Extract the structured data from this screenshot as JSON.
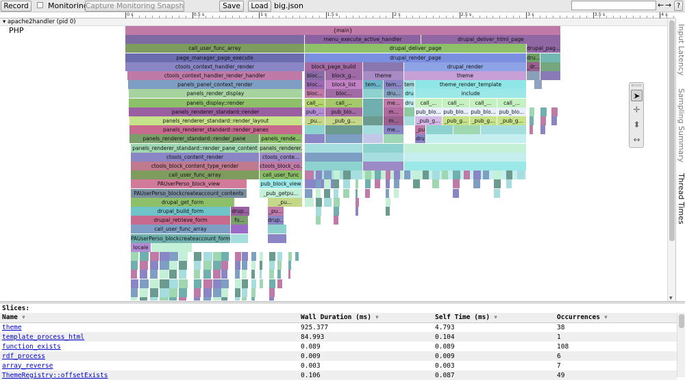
{
  "toolbar": {
    "record_label": "Record",
    "monitoring_label": "Monitoring",
    "monitoring_checked": false,
    "capture_label": "Capture Monitoring Snapshot",
    "save_label": "Save",
    "load_label": "Load",
    "filename": "big.json",
    "search_value": "",
    "prev_label": "←",
    "next_label": "→",
    "help_label": "?"
  },
  "ruler": {
    "ticks": [
      "0 s",
      "0.5 s",
      "1 s",
      "1.5 s",
      "2 s",
      "2.5 s",
      "3 s",
      "3.5 s",
      "4 s"
    ]
  },
  "track": {
    "process_label": "apache2handler (pid 0)",
    "thread_label": "PHP"
  },
  "side_tabs": [
    "Input Latency",
    "Sampling Summary",
    "Thread Times"
  ],
  "tools": [
    {
      "icon": "cursor-icon",
      "glyph": "➤"
    },
    {
      "icon": "pan-icon",
      "glyph": "✛"
    },
    {
      "icon": "zoom-icon",
      "glyph": "⬍"
    },
    {
      "icon": "timing-icon",
      "glyph": "↔"
    }
  ],
  "flame": {
    "rows": [
      [
        [
          "{main}",
          0,
          636,
          "#c07aa8"
        ]
      ],
      [
        [
          "",
          0,
          262,
          "#7d6aa2"
        ],
        [
          "menu_execute_active_handler",
          262,
          170,
          "#8c62a2"
        ],
        [
          "drupal_deliver_html_page",
          432,
          204,
          "#9067a3"
        ]
      ],
      [
        [
          "call_user_func_array",
          0,
          262,
          "#7f9c5f"
        ],
        [
          "drupal_deliver_page",
          262,
          324,
          "#8ec06a"
        ],
        [
          "drupal_pag...",
          586,
          50,
          "#9267a6"
        ]
      ],
      [
        [
          "page_manager_page_execute",
          0,
          262,
          "#6b6bb0"
        ],
        [
          "drupal_render_page",
          262,
          324,
          "#7a8fe0"
        ],
        [
          "dru...",
          586,
          20,
          "#6e9d68"
        ],
        [
          "",
          606,
          30,
          "#72b7b2"
        ]
      ],
      [
        [
          "ctools_context_handler_render",
          0,
          262,
          "#8a86c6"
        ],
        [
          "block_page_build",
          262,
          85,
          "#a36aa5"
        ],
        [
          "",
          347,
          60,
          "#8a77b0"
        ],
        [
          "drupal_render",
          407,
          179,
          "#8ea3e6"
        ],
        [
          "_dr...",
          586,
          20,
          "#9a5f8f"
        ],
        [
          "",
          606,
          30,
          "#76a880"
        ]
      ],
      [
        [
          "ctools_context_handler_render_handler",
          3,
          256,
          "#c07aa8"
        ],
        [
          "bloc...",
          262,
          30,
          "#8a6aa5"
        ],
        [
          "block_g...",
          292,
          55,
          "#a06aa7"
        ],
        [
          "theme",
          347,
          60,
          "#a98ac4"
        ],
        [
          "theme",
          407,
          179,
          "#c6a0d6"
        ],
        [
          "",
          586,
          20,
          "#8aa0b8"
        ],
        [
          "",
          606,
          30,
          "#8a7bb8"
        ]
      ],
      [
        [
          "panels_panel_context_render",
          4,
          255,
          "#7e9fc3"
        ],
        [
          "bloc...",
          262,
          30,
          "#9c6ab1"
        ],
        [
          "block_list",
          292,
          55,
          "#c382c5"
        ],
        [
          "tem...",
          347,
          30,
          "#6bb4c9"
        ],
        [
          "tem...",
          377,
          30,
          "#8a86c6"
        ],
        [
          "tem",
          407,
          16,
          "#a6ddde"
        ],
        [
          "theme_render_template",
          423,
          163,
          "#8fe6e6"
        ],
        [
          "",
          597,
          12,
          "#8fa3c0"
        ]
      ],
      [
        [
          "panels_render_display",
          5,
          254,
          "#a6d3a0"
        ],
        [
          "bloc...",
          262,
          30,
          "#c07aa8"
        ],
        [
          "bloc...",
          292,
          55,
          "#a06aa5"
        ],
        [
          "",
          347,
          30,
          "#8ed2cf"
        ],
        [
          "dru...",
          377,
          30,
          "#85a0bf"
        ],
        [
          "dru",
          407,
          16,
          "#9be8e8"
        ],
        [
          "include",
          423,
          163,
          "#9be8e8"
        ]
      ],
      [
        [
          "panels_display::render",
          5,
          254,
          "#8ec06a"
        ],
        [
          "call_...",
          262,
          30,
          "#b3d36c"
        ],
        [
          "call_...",
          292,
          55,
          "#a5c86a"
        ],
        [
          "",
          347,
          30,
          "#6fb0ae"
        ],
        [
          "me...",
          377,
          30,
          "#c07aa8"
        ],
        [
          "dru",
          407,
          16,
          "#c4efee"
        ],
        [
          "call_...",
          423,
          40,
          "#c5f0c0"
        ],
        [
          "call_...",
          463,
          40,
          "#c5f0c0"
        ],
        [
          "call_...",
          503,
          40,
          "#c5f0c0"
        ],
        [
          "call_...",
          543,
          43,
          "#c5f0c0"
        ]
      ],
      [
        [
          "panels_renderer_standard::render",
          5,
          254,
          "#9a5fa0"
        ],
        [
          "pub_...",
          262,
          30,
          "#b48cd6"
        ],
        [
          "pub_blo...",
          292,
          55,
          "#a46aa5"
        ],
        [
          "",
          347,
          30,
          "#6fb0ae"
        ],
        [
          "m...",
          377,
          30,
          "#b06a9d"
        ],
        [
          "",
          407,
          16,
          "#8fc99f"
        ],
        [
          "pub_blo...",
          423,
          40,
          "#e8f0ff"
        ],
        [
          "pub_blo...",
          463,
          40,
          "#e8f0ff"
        ],
        [
          "pub_blo...",
          503,
          40,
          "#e8f0ff"
        ],
        [
          "pub_blo...",
          543,
          43,
          "#e8f0ff"
        ]
      ],
      [
        [
          "panels_renderer_standard::render_layout",
          6,
          253,
          "#c6e38a"
        ],
        [
          "_pu...",
          262,
          30,
          "#c5d88a"
        ],
        [
          "_pub_g...",
          292,
          55,
          "#c5d88a"
        ],
        [
          "",
          347,
          30,
          "#6b9a8f"
        ],
        [
          "m...",
          377,
          30,
          "#9a5f8f"
        ],
        [
          "",
          407,
          16,
          "#a6ddde"
        ],
        [
          "_pub_g...",
          423,
          40,
          "#d4b8e6"
        ],
        [
          "_pub_g...",
          463,
          40,
          "#c6e38a"
        ],
        [
          "_pub_g...",
          503,
          40,
          "#c6e38a"
        ],
        [
          "_pub_g...",
          543,
          43,
          "#c6e38a"
        ]
      ],
      [
        [
          "panels_renderer_standard::render_panes",
          6,
          253,
          "#c86a8e"
        ],
        [
          "",
          262,
          30,
          "#8ed2cf"
        ],
        [
          "",
          292,
          55,
          "#6b9a8f"
        ],
        [
          "",
          347,
          30,
          "#a6ddde"
        ],
        [
          "me...",
          377,
          30,
          "#8a86c6"
        ],
        [
          "_pu",
          423,
          16,
          "#c07aa8"
        ],
        [
          "",
          439,
          40,
          "#8ed2cf"
        ],
        [
          "",
          479,
          40,
          "#9ed7b0"
        ],
        [
          "",
          519,
          67,
          "#a6ddde"
        ]
      ],
      [
        [
          "panels_renderer_standard::render_pane",
          6,
          190,
          "#7a9f6b"
        ],
        [
          "panels_rende...",
          196,
          63,
          "#89ba66"
        ],
        [
          "",
          262,
          30,
          "#8a86c6"
        ],
        [
          "",
          292,
          55,
          "#7e9fc3"
        ],
        [
          "",
          347,
          30,
          "#c3c6e6"
        ],
        [
          "",
          377,
          30,
          "#9fd7b6"
        ],
        [
          "dru",
          423,
          16,
          "#8a86c6"
        ],
        [
          "",
          439,
          147,
          "#c4efee"
        ]
      ],
      [
        [
          "panels_renderer_standard::render_pane_content",
          8,
          188,
          "#9ed7b0"
        ],
        [
          "panels_renderer...",
          196,
          63,
          "#a6d3a0"
        ],
        [
          "",
          262,
          85,
          "#a6ddde"
        ],
        [
          "",
          347,
          60,
          "#8ed2cf"
        ],
        [
          "",
          407,
          179,
          "#c5f0d8"
        ]
      ],
      [
        [
          "ctools_content_render",
          8,
          188,
          "#8a86c6"
        ],
        [
          "ctools_conte...",
          196,
          63,
          "#9b8ac6"
        ],
        [
          "",
          262,
          85,
          "#7e9fc3"
        ],
        [
          "",
          347,
          60,
          "#a6ddde"
        ],
        [
          "",
          407,
          179,
          "#c4efee"
        ]
      ],
      [
        [
          "ctools_block_content_type_render",
          8,
          188,
          "#c07a8e"
        ],
        [
          "ctools_block_co...",
          196,
          63,
          "#c07aa8"
        ],
        [
          "",
          262,
          85,
          "#8ed2cf"
        ],
        [
          "",
          347,
          60,
          "#9b8ac6"
        ],
        [
          "",
          407,
          179,
          "#9be8e8"
        ]
      ],
      [
        [
          "call_user_func_array",
          8,
          188,
          "#7f9c5f"
        ],
        [
          "call_user_func",
          196,
          63,
          "#89ba66"
        ],
        [
          "",
          262,
          85,
          "#a6ddde"
        ],
        [
          "",
          347,
          60,
          "#c5f0d8"
        ],
        [
          "",
          407,
          179,
          "#c4efee"
        ]
      ],
      [
        [
          "PAUserPerso_block_view",
          8,
          170,
          "#d17a9a"
        ],
        [
          "pub_block_view",
          196,
          63,
          "#9be8e8"
        ],
        [
          "",
          262,
          50,
          "#8a86c6"
        ]
      ],
      [
        [
          "PAUserPerso_blockcreateaccount_contents",
          8,
          170,
          "#7a8fa0"
        ],
        [
          "_pub_getpu...",
          196,
          63,
          "#c5f0d8"
        ]
      ],
      [
        [
          "drupal_get_form",
          8,
          152,
          "#8ec06a"
        ],
        [
          "_pu...",
          208,
          51,
          "#c5d88a"
        ]
      ],
      [
        [
          "drupal_build_form",
          8,
          146,
          "#6ec4c9"
        ],
        [
          "drup...",
          154,
          28,
          "#9a5fa0"
        ],
        [
          "_pu...",
          208,
          24,
          "#c07aa8"
        ]
      ],
      [
        [
          "drupal_retrieve_form",
          8,
          146,
          "#c86a8e"
        ],
        [
          "fo...",
          154,
          26,
          "#7a9f6b"
        ],
        [
          "drup...",
          208,
          24,
          "#8a86c6"
        ]
      ],
      [
        [
          "call_user_func_array",
          8,
          146,
          "#7e9fc3"
        ],
        [
          "",
          154,
          26,
          "#9b6ac6"
        ],
        [
          "",
          208,
          28,
          "#8ed2cf"
        ]
      ],
      [
        [
          "PAUserPerso_blockcreateaccount_form",
          8,
          146,
          "#6fb0ae"
        ],
        [
          "",
          154,
          26,
          "#a6ddde"
        ],
        [
          "",
          208,
          28,
          "#8a86c6"
        ]
      ],
      [
        [
          "locale",
          8,
          30,
          "#b48cd6"
        ],
        [
          "",
          38,
          60,
          "#c5f0d8"
        ]
      ]
    ],
    "fill_colors": [
      "#9ed7b0",
      "#6fb0ae",
      "#c07aa8",
      "#8a86c6",
      "#7e9fc3",
      "#c5f0d8",
      "#6b9a8f",
      "#a6ddde"
    ]
  },
  "slices": {
    "title": "Slices:",
    "columns": [
      "Name ▿",
      "Wall Duration (ms) ▿",
      "Self Time (ms) ▿",
      "Occurrences ▿"
    ],
    "rows": [
      [
        "theme",
        "925.377",
        "4.793",
        "38"
      ],
      [
        "template_process_html",
        "84.993",
        "0.104",
        "1"
      ],
      [
        "function_exists",
        "0.089",
        "0.089",
        "108"
      ],
      [
        "rdf_process",
        "0.009",
        "0.009",
        "6"
      ],
      [
        "array_reverse",
        "0.003",
        "0.003",
        "7"
      ],
      [
        "ThemeRegistry::offsetExists",
        "0.106",
        "0.087",
        "49"
      ]
    ]
  }
}
